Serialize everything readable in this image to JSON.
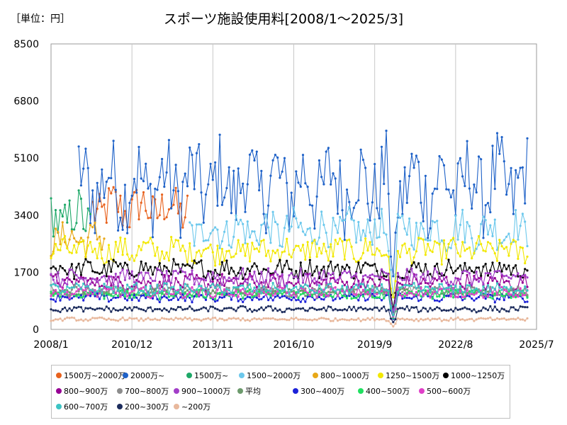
{
  "unit_label": "［単位：円］",
  "chart_data": {
    "type": "line",
    "title": "スポーツ施設使用料[2008/1～2025/3]",
    "ylim": [
      0,
      8500
    ],
    "y_ticks": [
      "0",
      "1700",
      "3400",
      "5100",
      "6800",
      "8500"
    ],
    "x_ticks": [
      "2008/1",
      "2010/12",
      "2013/11",
      "2016/10",
      "2019/9",
      "2022/8",
      "2025/7"
    ],
    "x_range": [
      "2008/1",
      "2025/7"
    ],
    "grid": "vertical",
    "legend_position": "bottom",
    "series": [
      {
        "name": "1500万~2000万",
        "color": "#e8621e",
        "start": "2009/7",
        "end": "2012/12",
        "base": 3600,
        "amp": 700,
        "noise": 0.18
      },
      {
        "name": "2000万~",
        "color": "#1f62c8",
        "start": "2009/1",
        "end": "2025/3",
        "base": 4300,
        "amp": 1500,
        "noise": 0.28
      },
      {
        "name": "1500万~",
        "color": "#1ea868",
        "start": "2008/1",
        "end": "2009/6",
        "base": 3300,
        "amp": 900,
        "noise": 0.22
      },
      {
        "name": "1500~2000万",
        "color": "#6cc8ec",
        "start": "2013/1",
        "end": "2025/3",
        "base": 2950,
        "amp": 600,
        "noise": 0.18
      },
      {
        "name": "800~1000万",
        "color": "#e8a818",
        "start": "2008/1",
        "end": "2009/12",
        "base": 2700,
        "amp": 400,
        "noise": 0.18
      },
      {
        "name": "1250~1500万",
        "color": "#f2e800",
        "start": "2008/1",
        "end": "2025/3",
        "base": 2350,
        "amp": 350,
        "noise": 0.15
      },
      {
        "name": "1000~1250万",
        "color": "#000000",
        "start": "2008/1",
        "end": "2025/3",
        "base": 1800,
        "amp": 250,
        "noise": 0.14
      },
      {
        "name": "800~900万",
        "color": "#960094",
        "start": "2008/1",
        "end": "2025/3",
        "base": 1400,
        "amp": 200,
        "noise": 0.15
      },
      {
        "name": "700~800万",
        "color": "#8c8c8c",
        "start": "2008/1",
        "end": "2025/3",
        "base": 1150,
        "amp": 150,
        "noise": 0.13
      },
      {
        "name": "900~1000万",
        "color": "#a23ec8",
        "start": "2008/1",
        "end": "2025/3",
        "base": 1550,
        "amp": 200,
        "noise": 0.15
      },
      {
        "name": "平均",
        "color": "#6c9a6c",
        "start": "2008/1",
        "end": "2025/3",
        "base": 1100,
        "amp": 100,
        "noise": 0.08
      },
      {
        "name": "300~400万",
        "color": "#1c22d8",
        "start": "2008/1",
        "end": "2025/3",
        "base": 950,
        "amp": 120,
        "noise": 0.12
      },
      {
        "name": "400~500万",
        "color": "#20e060",
        "start": "2008/1",
        "end": "2025/3",
        "base": 1050,
        "amp": 130,
        "noise": 0.12
      },
      {
        "name": "500~600万",
        "color": "#e040c8",
        "start": "2008/1",
        "end": "2025/3",
        "base": 1100,
        "amp": 140,
        "noise": 0.12
      },
      {
        "name": "600~700万",
        "color": "#3cc4c4",
        "start": "2008/1",
        "end": "2025/3",
        "base": 1200,
        "amp": 140,
        "noise": 0.12
      },
      {
        "name": "200~300万",
        "color": "#1c2c5c",
        "start": "2008/1",
        "end": "2025/3",
        "base": 600,
        "amp": 80,
        "noise": 0.12
      },
      {
        "name": "~200万",
        "color": "#e8b89c",
        "start": "2008/1",
        "end": "2025/3",
        "base": 300,
        "amp": 50,
        "noise": 0.14
      }
    ],
    "dip_month": "2020/5"
  }
}
